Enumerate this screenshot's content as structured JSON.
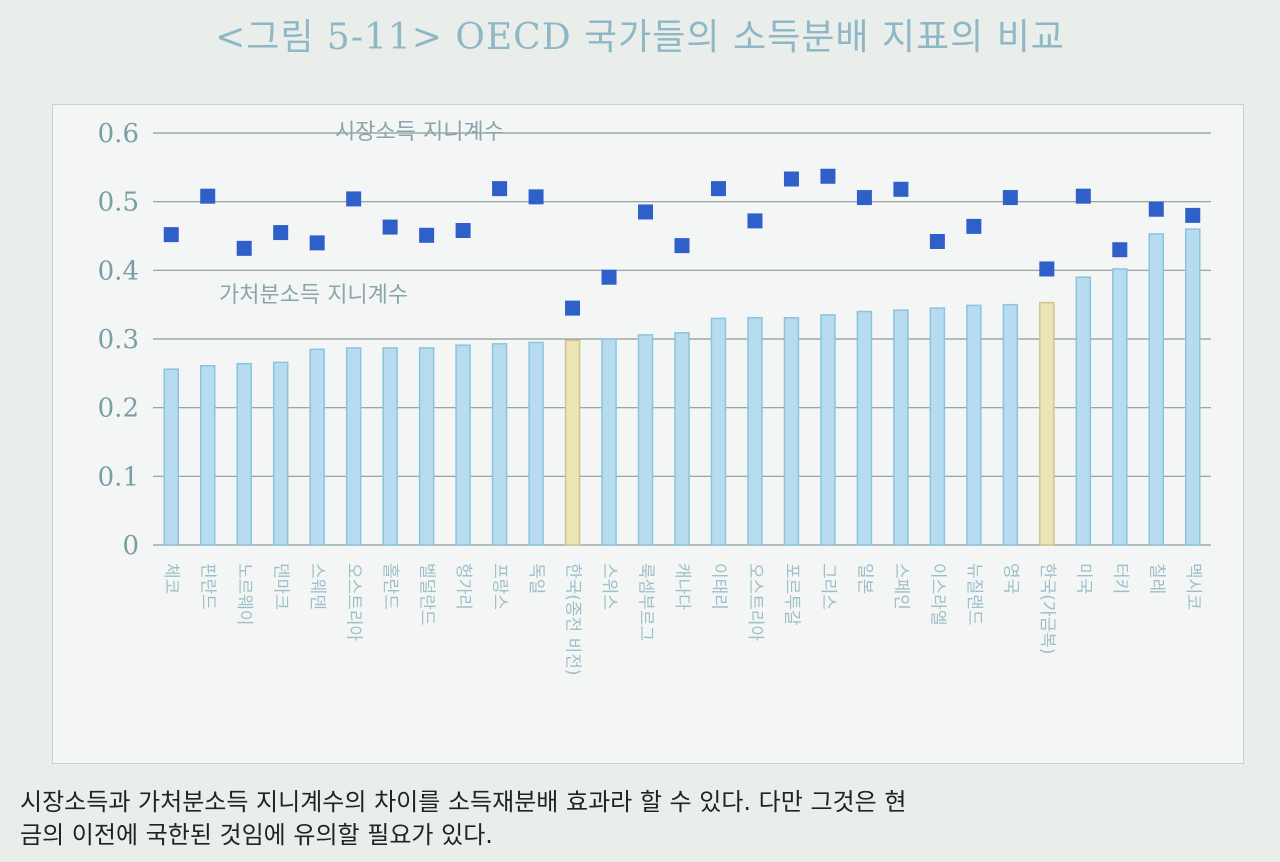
{
  "title": "<그림 5-11> OECD 국가들의 소득분배 지표의 비교",
  "caption": "시장소득과 가처분소득 지니계수의 차이를 소득재분배 효과라 할 수 있다. 다만 그것은 현\n금의 이전에 국한된 것임에 유의할 필요가 있다.",
  "chart_data": {
    "type": "bar",
    "categories": [
      "체코",
      "핀란드",
      "노르웨이",
      "덴마크",
      "스웨덴",
      "오스트리아",
      "홀란드",
      "벨덜란드",
      "헝가리",
      "프랑스",
      "독일",
      "한국(종전 비전)",
      "스위스",
      "룩셈부르그",
      "캐나다",
      "이태리",
      "오스트리아",
      "포르투갈",
      "그리스",
      "일본",
      "스페인",
      "이스라엘",
      "뉴질랜드",
      "영국",
      "한국(가금복)",
      "미국",
      "터키",
      "칠레",
      "멕시코"
    ],
    "series": [
      {
        "name": "가처분소득 지니계수",
        "kind": "bar",
        "values": [
          0.256,
          0.261,
          0.264,
          0.266,
          0.285,
          0.287,
          0.287,
          0.287,
          0.291,
          0.293,
          0.295,
          0.298,
          0.3,
          0.306,
          0.309,
          0.33,
          0.331,
          0.331,
          0.335,
          0.34,
          0.342,
          0.345,
          0.349,
          0.35,
          0.353,
          0.39,
          0.402,
          0.453,
          0.46
        ]
      },
      {
        "name": "시장소득 지니계수",
        "kind": "marker",
        "values": [
          0.452,
          0.508,
          0.432,
          0.455,
          0.44,
          0.504,
          0.463,
          0.451,
          0.458,
          0.519,
          0.507,
          0.345,
          0.39,
          0.485,
          0.436,
          0.519,
          0.472,
          0.533,
          0.537,
          0.506,
          0.518,
          0.442,
          0.464,
          0.506,
          0.402,
          0.508,
          0.43,
          0.489,
          0.48
        ]
      }
    ],
    "highlight_categories": [
      "한국(종전 비전)",
      "한국(가금복)"
    ],
    "yticks": [
      "0",
      "0.1",
      "0.2",
      "0.3",
      "0.4",
      "0.5",
      "0.6"
    ],
    "ylim": [
      0,
      0.6
    ],
    "grid": true,
    "colors": {
      "bar": "#b7dcef",
      "bar_edge": "#8cc3e0",
      "highlight_bar": "#ece4b4",
      "highlight_edge": "#cfc48c",
      "marker": "#2f5fc8",
      "grid": "#8e9a97"
    }
  }
}
